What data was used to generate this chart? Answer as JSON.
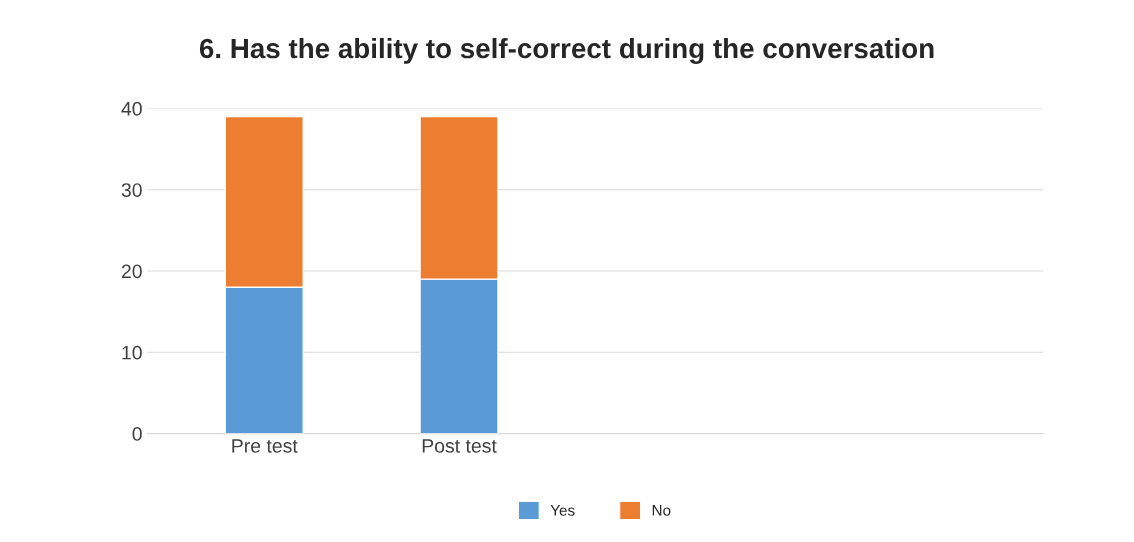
{
  "chart_data": {
    "type": "bar",
    "title": "6. Has the ability to self-correct during the conversation",
    "categories": [
      "Pre test",
      "Post test"
    ],
    "series": [
      {
        "name": "Yes",
        "color": "#5b9bd5",
        "values": [
          18,
          19
        ]
      },
      {
        "name": "No",
        "color": "#ed7d31",
        "values": [
          21,
          20
        ]
      }
    ],
    "stacked": true,
    "ylim": [
      0,
      40
    ],
    "yticks": [
      0,
      10,
      20,
      30,
      40
    ],
    "grid": "y",
    "legend": "bottom"
  }
}
